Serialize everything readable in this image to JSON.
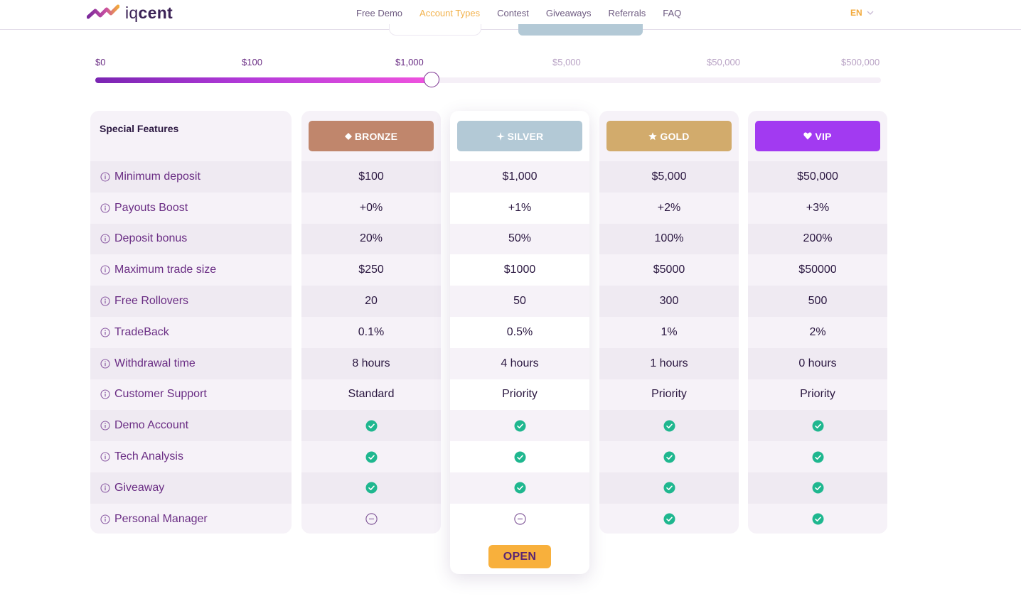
{
  "brand": {
    "name_light": "iq",
    "name_bold": "cent",
    "accent": "#f2a93b",
    "primary": "#6a2d84"
  },
  "nav": {
    "items": [
      "Free Demo",
      "Account Types",
      "Contest",
      "Giveaways",
      "Referrals",
      "FAQ"
    ],
    "active": "Account Types",
    "lang": "EN"
  },
  "slider": {
    "labels": [
      "$0",
      "$100",
      "$1,000",
      "$5,000",
      "$50,000",
      "$500,000"
    ],
    "selected_label": "$1,000"
  },
  "table": {
    "features_title": "Special Features",
    "features": [
      "Minimum deposit",
      "Payouts Boost",
      "Deposit bonus",
      "Maximum trade size",
      "Free Rollovers",
      "TradeBack",
      "Withdrawal time",
      "Customer Support",
      "Demo Account",
      "Tech Analysis",
      "Giveaway",
      "Personal Manager"
    ],
    "plans": [
      {
        "name": "BRONZE",
        "icon": "diamond-icon",
        "color": "#c0866c",
        "values": [
          "$100",
          "+0%",
          "20%",
          "$250",
          "20",
          "0.1%",
          "8 hours",
          "Standard"
        ],
        "flags": [
          true,
          true,
          true,
          false
        ]
      },
      {
        "name": "SILVER",
        "icon": "sparkle-icon",
        "color": "#b3c9d6",
        "values": [
          "$1,000",
          "+1%",
          "50%",
          "$1000",
          "50",
          "0.5%",
          "4 hours",
          "Priority"
        ],
        "flags": [
          true,
          true,
          true,
          false
        ]
      },
      {
        "name": "GOLD",
        "icon": "star-icon",
        "color": "#d2ab6c",
        "values": [
          "$5,000",
          "+2%",
          "100%",
          "$5000",
          "300",
          "1%",
          "1 hours",
          "Priority"
        ],
        "flags": [
          true,
          true,
          true,
          true
        ]
      },
      {
        "name": "VIP",
        "icon": "heart-gem-icon",
        "color": "#a23af1",
        "values": [
          "$50,000",
          "+3%",
          "200%",
          "$50000",
          "500",
          "2%",
          "0 hours",
          "Priority"
        ],
        "flags": [
          true,
          true,
          true,
          true
        ]
      }
    ],
    "open_button": "OPEN"
  }
}
